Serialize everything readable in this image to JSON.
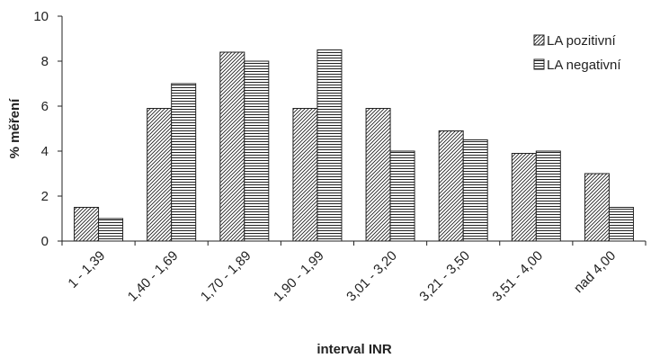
{
  "chart_data": {
    "type": "bar",
    "title": "",
    "xlabel": "interval INR",
    "ylabel": "% měření",
    "ylim": [
      0,
      10
    ],
    "yticks": [
      0,
      2,
      4,
      6,
      8,
      10
    ],
    "grid": false,
    "legend_position": "top-right",
    "categories": [
      "1 - 1,39",
      "1,40 - 1,69",
      "1,70 - 1,89",
      "1,90 - 1,99",
      "3,01 - 3,20",
      "3,21 - 3,50",
      "3,51 - 4,00",
      "nad 4,00"
    ],
    "series": [
      {
        "name": "LA pozitivní",
        "pattern": "diagonal-hatch",
        "values": [
          1.5,
          5.9,
          8.4,
          5.9,
          5.9,
          4.9,
          3.9,
          3.0
        ]
      },
      {
        "name": "LA negativní",
        "pattern": "horizontal-lines",
        "values": [
          1.0,
          7.0,
          8.0,
          8.5,
          4.0,
          4.5,
          4.0,
          1.5
        ]
      }
    ]
  }
}
